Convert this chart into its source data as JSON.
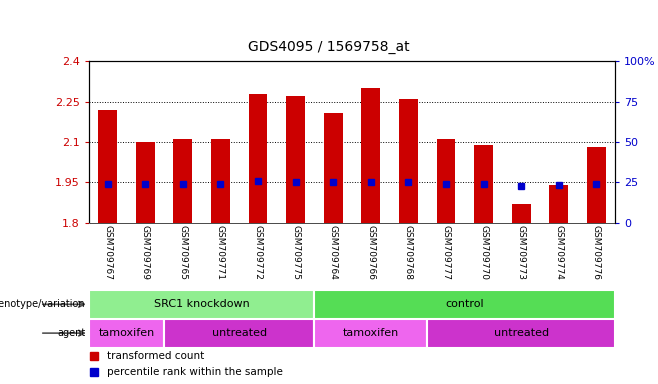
{
  "title": "GDS4095 / 1569758_at",
  "samples": [
    "GSM709767",
    "GSM709769",
    "GSM709765",
    "GSM709771",
    "GSM709772",
    "GSM709775",
    "GSM709764",
    "GSM709766",
    "GSM709768",
    "GSM709777",
    "GSM709770",
    "GSM709773",
    "GSM709774",
    "GSM709776"
  ],
  "bar_tops": [
    2.22,
    2.1,
    2.11,
    2.11,
    2.28,
    2.27,
    2.21,
    2.3,
    2.26,
    2.11,
    2.09,
    1.87,
    1.94,
    2.08
  ],
  "bar_bottom": 1.8,
  "percentile_values": [
    1.945,
    1.943,
    1.943,
    1.943,
    1.955,
    1.952,
    1.95,
    1.953,
    1.951,
    1.943,
    1.943,
    1.935,
    1.942,
    1.943
  ],
  "ylim_left": [
    1.8,
    2.4
  ],
  "ylim_right": [
    0,
    100
  ],
  "yticks_left": [
    1.8,
    1.95,
    2.1,
    2.25,
    2.4
  ],
  "yticks_left_labels": [
    "1.8",
    "1.95",
    "2.1",
    "2.25",
    "2.4"
  ],
  "yticks_right": [
    0,
    25,
    50,
    75,
    100
  ],
  "yticks_right_labels": [
    "0",
    "25",
    "50",
    "75",
    "100%"
  ],
  "hlines": [
    1.95,
    2.1,
    2.25
  ],
  "bar_color": "#cc0000",
  "percentile_color": "#0000cc",
  "genotype_groups": [
    {
      "label": "SRC1 knockdown",
      "start": 0,
      "end": 6,
      "color": "#90ee90"
    },
    {
      "label": "control",
      "start": 6,
      "end": 14,
      "color": "#55dd55"
    }
  ],
  "agent_groups": [
    {
      "label": "tamoxifen",
      "start": 0,
      "end": 2,
      "color": "#ee66ee"
    },
    {
      "label": "untreated",
      "start": 2,
      "end": 6,
      "color": "#cc33cc"
    },
    {
      "label": "tamoxifen",
      "start": 6,
      "end": 9,
      "color": "#ee66ee"
    },
    {
      "label": "untreated",
      "start": 9,
      "end": 14,
      "color": "#cc33cc"
    }
  ],
  "legend_items": [
    {
      "label": "transformed count",
      "color": "#cc0000"
    },
    {
      "label": "percentile rank within the sample",
      "color": "#0000cc"
    }
  ],
  "left_label_color": "#cc0000",
  "right_label_color": "#0000cc",
  "tick_area_color": "#cccccc"
}
